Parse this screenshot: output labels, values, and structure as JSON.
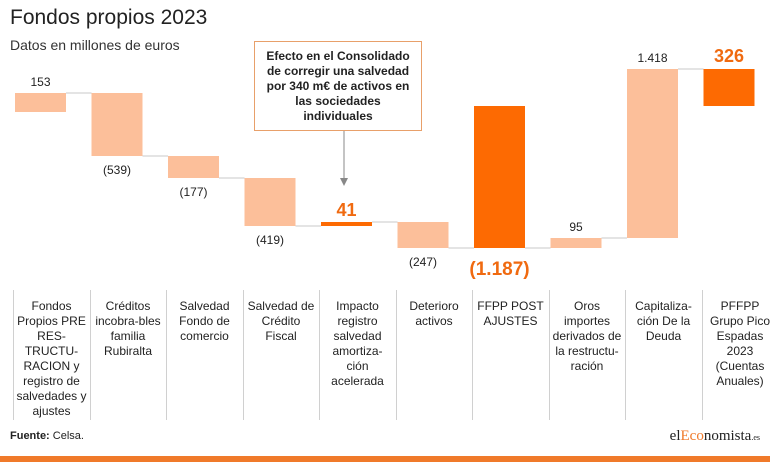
{
  "header": {
    "title": "Fondos propios 2023",
    "subtitle": "Datos en millones de euros"
  },
  "callout": {
    "text": "Efecto en el Consolidado de corregir una salvedad por 340 m€ de activos en las sociedades individuales"
  },
  "footer": {
    "source_label": "Fuente:",
    "source_value": "Celsa.",
    "logo_prefix": "el",
    "logo_accent": "Eco",
    "logo_rest": "nomista",
    "logo_suffix": ".es"
  },
  "colors": {
    "light_bar": "#fcbf9a",
    "highlight_bar": "#fd6a02",
    "connector": "#c8c8c8",
    "accent_text": "#f06a10"
  },
  "chart_data": {
    "type": "bar",
    "subtype": "waterfall",
    "title": "Fondos propios 2023",
    "subtitle": "Datos en millones de euros",
    "unit": "millones de euros",
    "categories": [
      "Fondos Propios PRE RES-TRUCTU-RACION y registro de salvedades y ajustes",
      "Créditos incobra-bles familia Rubiralta",
      "Salvedad Fondo de comercio",
      "Salvedad de Crédito Fiscal",
      "Impacto registro salvedad amortiza-ción acelerada",
      "Deterioro activos",
      "FFPP POST AJUSTES",
      "Oros importes derivados de la restructu-ración",
      "Capitaliza-ción De la Deuda",
      "PFFPP Grupo Pico Espadas 2023 (Cuentas Anuales)"
    ],
    "values": [
      153,
      -539,
      -177,
      -419,
      41,
      -247,
      -1187,
      95,
      1418,
      326
    ],
    "labels": [
      "153",
      "(539)",
      "(177)",
      "(419)",
      "41",
      "(247)",
      "(1.187)",
      "95",
      "1.418",
      "326"
    ],
    "highlight": [
      false,
      false,
      false,
      false,
      true,
      false,
      true,
      false,
      false,
      true
    ],
    "subtotal": [
      false,
      false,
      false,
      false,
      false,
      false,
      true,
      false,
      false,
      true
    ]
  }
}
